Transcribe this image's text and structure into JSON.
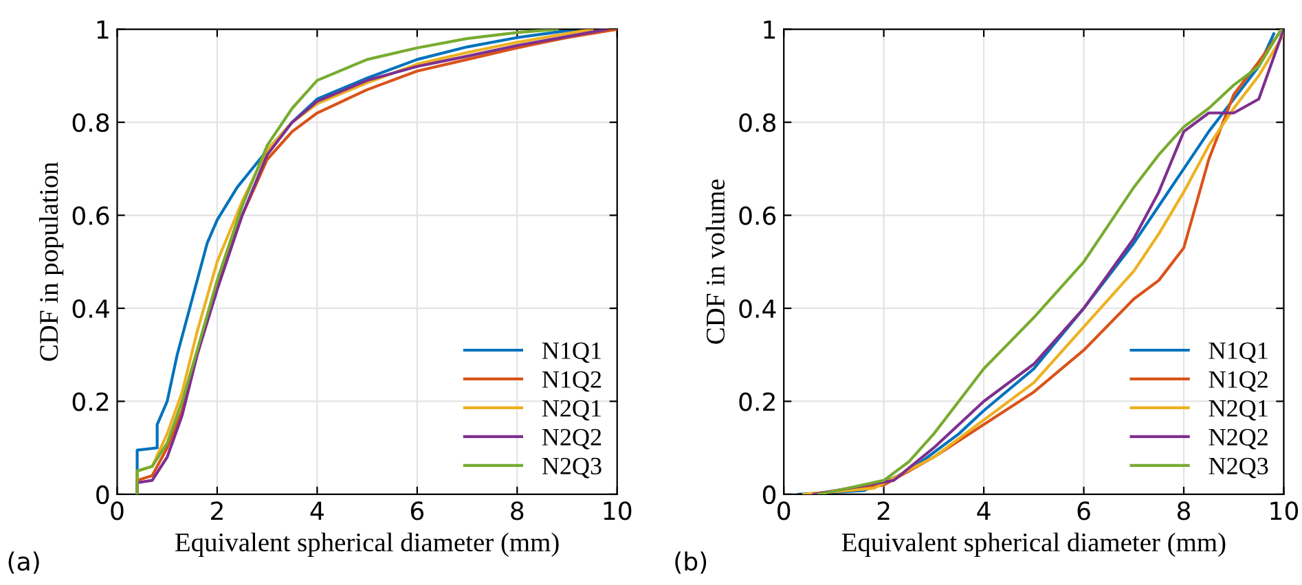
{
  "chart_data": [
    {
      "type": "line",
      "xlabel": "Equivalent spherical diameter (mm)",
      "ylabel": "CDF in population",
      "annotations": [
        "(a)"
      ],
      "xlim": [
        0,
        10
      ],
      "ylim": [
        0,
        1
      ],
      "xticks": [
        0,
        2,
        4,
        6,
        8,
        10
      ],
      "yticks": [
        0,
        0.2,
        0.4,
        0.6,
        0.8,
        1
      ],
      "grid": true,
      "legend": "bottom right",
      "series": [
        {
          "name": "N1Q1",
          "color": "#0072bd",
          "x": [
            0.4,
            0.4,
            0.8,
            0.8,
            1.0,
            1.2,
            1.5,
            1.8,
            2.0,
            2.4,
            3.0,
            3.5,
            4.0,
            5,
            6,
            7,
            8,
            9.2
          ],
          "values": [
            0,
            0.095,
            0.1,
            0.15,
            0.2,
            0.3,
            0.42,
            0.54,
            0.59,
            0.66,
            0.74,
            0.8,
            0.85,
            0.895,
            0.935,
            0.962,
            0.982,
            1
          ]
        },
        {
          "name": "N1Q2",
          "color": "#d95319",
          "x": [
            0.4,
            0.4,
            0.7,
            1.0,
            1.3,
            1.6,
            2.0,
            2.5,
            3.0,
            3.5,
            4.0,
            5,
            6,
            7,
            8,
            9,
            10
          ],
          "values": [
            0,
            0.03,
            0.04,
            0.1,
            0.18,
            0.3,
            0.45,
            0.6,
            0.72,
            0.78,
            0.82,
            0.87,
            0.91,
            0.935,
            0.96,
            0.982,
            1
          ]
        },
        {
          "name": "N2Q1",
          "color": "#edb120",
          "x": [
            0.4,
            0.4,
            0.7,
            1.0,
            1.3,
            1.6,
            2.0,
            2.5,
            3.0,
            3.5,
            4.0,
            5,
            6,
            7,
            8,
            9.5
          ],
          "values": [
            0,
            0.05,
            0.06,
            0.13,
            0.22,
            0.35,
            0.5,
            0.63,
            0.74,
            0.8,
            0.84,
            0.885,
            0.925,
            0.95,
            0.972,
            1
          ]
        },
        {
          "name": "N2Q2",
          "color": "#7e2f8e",
          "x": [
            0.4,
            0.4,
            0.7,
            1.0,
            1.3,
            1.6,
            2.0,
            2.5,
            3.0,
            3.5,
            4.0,
            5,
            6,
            7,
            8,
            9.8
          ],
          "values": [
            0,
            0.025,
            0.03,
            0.08,
            0.17,
            0.3,
            0.44,
            0.6,
            0.73,
            0.8,
            0.845,
            0.89,
            0.92,
            0.942,
            0.965,
            1
          ]
        },
        {
          "name": "N2Q3",
          "color": "#77ac30",
          "x": [
            0.4,
            0.4,
            0.7,
            1.0,
            1.3,
            1.6,
            2.0,
            2.5,
            3.0,
            3.5,
            4.0,
            5,
            6,
            7,
            8,
            8.8
          ],
          "values": [
            0,
            0.05,
            0.06,
            0.11,
            0.2,
            0.31,
            0.46,
            0.62,
            0.75,
            0.83,
            0.89,
            0.935,
            0.96,
            0.98,
            0.993,
            1
          ]
        }
      ]
    },
    {
      "type": "line",
      "xlabel": "Equivalent spherical diameter (mm)",
      "ylabel": "CDF in volume",
      "annotations": [
        "(b)"
      ],
      "xlim": [
        0,
        10
      ],
      "ylim": [
        0,
        1
      ],
      "xticks": [
        0,
        2,
        4,
        6,
        8,
        10
      ],
      "yticks": [
        0,
        0.2,
        0.4,
        0.6,
        0.8,
        1
      ],
      "grid": true,
      "legend": "bottom right",
      "series": [
        {
          "name": "N1Q1",
          "color": "#0072bd",
          "x": [
            0.3,
            1.6,
            2.5,
            3,
            3.5,
            4,
            5,
            6,
            7,
            7.5,
            8,
            8.5,
            9,
            9.5,
            9.8
          ],
          "values": [
            0,
            0.008,
            0.05,
            0.09,
            0.13,
            0.18,
            0.27,
            0.4,
            0.54,
            0.62,
            0.7,
            0.78,
            0.85,
            0.92,
            0.99
          ]
        },
        {
          "name": "N1Q2",
          "color": "#d95319",
          "x": [
            0.5,
            2,
            3,
            4,
            5,
            6,
            7,
            7.5,
            8,
            8.5,
            9,
            9.5,
            9.9
          ],
          "values": [
            0,
            0.02,
            0.08,
            0.15,
            0.22,
            0.31,
            0.42,
            0.46,
            0.53,
            0.72,
            0.86,
            0.93,
            0.99
          ]
        },
        {
          "name": "N2Q1",
          "color": "#edb120",
          "x": [
            0.4,
            1.8,
            3,
            4,
            5,
            6,
            7,
            7.5,
            8,
            8.5,
            9,
            9.5,
            10
          ],
          "values": [
            0,
            0.013,
            0.08,
            0.16,
            0.24,
            0.36,
            0.48,
            0.56,
            0.65,
            0.75,
            0.83,
            0.9,
            0.99
          ]
        },
        {
          "name": "N2Q2",
          "color": "#7e2f8e",
          "x": [
            0.6,
            2.2,
            3,
            4,
            5,
            6,
            7,
            7.5,
            8,
            8.5,
            9,
            9.5,
            10
          ],
          "values": [
            0,
            0.03,
            0.1,
            0.2,
            0.28,
            0.4,
            0.55,
            0.65,
            0.78,
            0.82,
            0.82,
            0.85,
            1
          ]
        },
        {
          "name": "N2Q3",
          "color": "#77ac30",
          "x": [
            0.7,
            2,
            2.5,
            3,
            3.5,
            4,
            5,
            6,
            6.5,
            7,
            7.5,
            8,
            8.5,
            9,
            9.5,
            9.95
          ],
          "values": [
            0,
            0.03,
            0.07,
            0.13,
            0.2,
            0.27,
            0.38,
            0.5,
            0.58,
            0.66,
            0.73,
            0.79,
            0.83,
            0.88,
            0.92,
            1
          ]
        }
      ]
    }
  ]
}
